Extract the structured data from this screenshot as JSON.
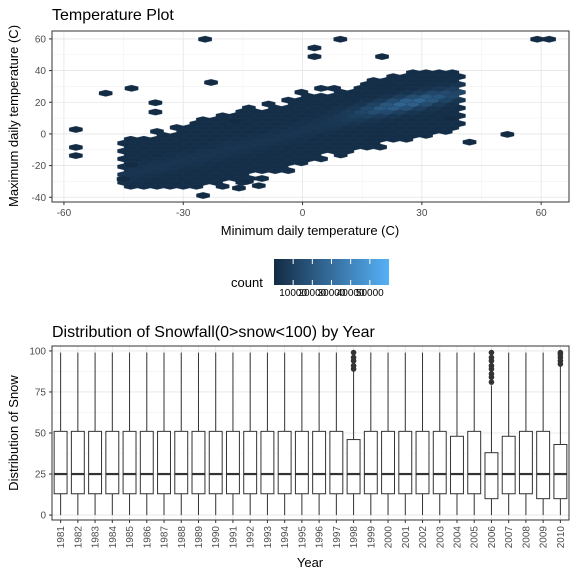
{
  "colors": {
    "panel_border": "#333333",
    "grid_major": "#e5e5e5",
    "grid_minor": "#f2f2f2",
    "hex_low": "#132b43",
    "hex_high": "#56b1f7",
    "hex_edge": "#1e3a5a",
    "box_line": "#333333"
  },
  "chart_data": [
    {
      "type": "hexbin",
      "title": "Temperature Plot",
      "xlabel": "Minimum daily temperature (C)",
      "ylabel": "Maximum daily temperature (C)",
      "xlim": [
        -63,
        67
      ],
      "ylim": [
        -43,
        65
      ],
      "x_ticks": [
        -60,
        -30,
        0,
        30,
        60
      ],
      "y_ticks": [
        -40,
        -20,
        0,
        20,
        40,
        60
      ],
      "x_tick_labels": [
        "-60",
        "-30",
        "0",
        "30",
        "60"
      ],
      "y_tick_labels": [
        "-40",
        "-20",
        "0",
        "20",
        "40",
        "60"
      ],
      "grid": true,
      "bin_width": [
        3.3,
        3.3
      ],
      "dense_region": {
        "description_free": true,
        "x_range": [
          -45,
          40
        ],
        "relationship": {
          "slope": 1.0,
          "intercept": 12
        },
        "half_width": 22,
        "peak": [
          14,
          25
        ]
      },
      "outlier_bins": [
        [
          -24.5,
          59.8
        ],
        [
          9.5,
          59.8
        ],
        [
          59,
          59.8
        ],
        [
          62,
          59.8
        ],
        [
          3,
          54.3
        ],
        [
          3,
          48.8
        ],
        [
          20,
          48.8
        ],
        [
          -49.5,
          25.7
        ],
        [
          -43,
          28.8
        ],
        [
          -37,
          19.7
        ],
        [
          -37,
          13.8
        ],
        [
          -23,
          32.5
        ],
        [
          -17,
          8.1
        ],
        [
          -14,
          -30.0
        ],
        [
          -16,
          -34.2
        ],
        [
          -25,
          -38.9
        ],
        [
          -11,
          -32.7
        ],
        [
          -57,
          2.8
        ],
        [
          -57,
          -8.5
        ],
        [
          -57,
          -13.7
        ],
        [
          37,
          9.5
        ],
        [
          42,
          -5.2
        ],
        [
          51.5,
          -0.3
        ],
        [
          -45,
          -28.5
        ],
        [
          -43,
          -19.5
        ]
      ],
      "legend": {
        "title": "count",
        "placement": "bottom",
        "ticks": [
          10000,
          20000,
          30000,
          40000,
          50000
        ],
        "tick_labels": [
          "10000",
          "20000",
          "30000",
          "40000",
          "50000"
        ],
        "range": [
          0,
          60000
        ]
      }
    },
    {
      "type": "boxplot",
      "title": "Distribution of Snowfall(0>snow<100) by Year",
      "xlabel": "Year",
      "ylabel": "Distribution of Snow",
      "ylim": [
        -3,
        103
      ],
      "y_ticks": [
        0,
        25,
        50,
        75,
        100
      ],
      "y_tick_labels": [
        "0",
        "25",
        "50",
        "75",
        "100"
      ],
      "grid": true,
      "categories": [
        "1981",
        "1982",
        "1983",
        "1984",
        "1985",
        "1986",
        "1987",
        "1988",
        "1989",
        "1990",
        "1991",
        "1992",
        "1993",
        "1994",
        "1995",
        "1996",
        "1997",
        "1998",
        "1999",
        "2000",
        "2001",
        "2002",
        "2003",
        "2004",
        "2005",
        "2006",
        "2007",
        "2008",
        "2009",
        "2010"
      ],
      "boxes": [
        {
          "min": 0,
          "q1": 13,
          "median": 25,
          "q3": 51,
          "max": 99,
          "outliers": []
        },
        {
          "min": 0,
          "q1": 13,
          "median": 25,
          "q3": 51,
          "max": 99,
          "outliers": []
        },
        {
          "min": 0,
          "q1": 13,
          "median": 25,
          "q3": 51,
          "max": 99,
          "outliers": []
        },
        {
          "min": 0,
          "q1": 13,
          "median": 25,
          "q3": 51,
          "max": 99,
          "outliers": []
        },
        {
          "min": 0,
          "q1": 13,
          "median": 25,
          "q3": 51,
          "max": 99,
          "outliers": []
        },
        {
          "min": 0,
          "q1": 13,
          "median": 25,
          "q3": 51,
          "max": 99,
          "outliers": []
        },
        {
          "min": 0,
          "q1": 13,
          "median": 25,
          "q3": 51,
          "max": 99,
          "outliers": []
        },
        {
          "min": 0,
          "q1": 13,
          "median": 25,
          "q3": 51,
          "max": 99,
          "outliers": []
        },
        {
          "min": 0,
          "q1": 13,
          "median": 25,
          "q3": 51,
          "max": 99,
          "outliers": []
        },
        {
          "min": 0,
          "q1": 13,
          "median": 25,
          "q3": 51,
          "max": 99,
          "outliers": []
        },
        {
          "min": 0,
          "q1": 13,
          "median": 25,
          "q3": 51,
          "max": 99,
          "outliers": []
        },
        {
          "min": 0,
          "q1": 13,
          "median": 25,
          "q3": 51,
          "max": 99,
          "outliers": []
        },
        {
          "min": 0,
          "q1": 13,
          "median": 25,
          "q3": 51,
          "max": 99,
          "outliers": []
        },
        {
          "min": 0,
          "q1": 13,
          "median": 25,
          "q3": 51,
          "max": 99,
          "outliers": []
        },
        {
          "min": 0,
          "q1": 13,
          "median": 25,
          "q3": 51,
          "max": 99,
          "outliers": []
        },
        {
          "min": 0,
          "q1": 13,
          "median": 25,
          "q3": 51,
          "max": 99,
          "outliers": []
        },
        {
          "min": 0,
          "q1": 13,
          "median": 25,
          "q3": 51,
          "max": 99,
          "outliers": []
        },
        {
          "min": 0,
          "q1": 13,
          "median": 25,
          "q3": 46,
          "max": 88,
          "outliers": [
            89,
            91,
            94,
            96,
            99
          ]
        },
        {
          "min": 0,
          "q1": 13,
          "median": 25,
          "q3": 51,
          "max": 99,
          "outliers": []
        },
        {
          "min": 0,
          "q1": 13,
          "median": 25,
          "q3": 51,
          "max": 99,
          "outliers": []
        },
        {
          "min": 0,
          "q1": 13,
          "median": 25,
          "q3": 51,
          "max": 99,
          "outliers": []
        },
        {
          "min": 0,
          "q1": 13,
          "median": 25,
          "q3": 51,
          "max": 99,
          "outliers": []
        },
        {
          "min": 0,
          "q1": 13,
          "median": 25,
          "q3": 51,
          "max": 99,
          "outliers": []
        },
        {
          "min": 0,
          "q1": 13,
          "median": 25,
          "q3": 48,
          "max": 99,
          "outliers": []
        },
        {
          "min": 0,
          "q1": 13,
          "median": 25,
          "q3": 51,
          "max": 99,
          "outliers": []
        },
        {
          "min": 0,
          "q1": 10,
          "median": 25,
          "q3": 38,
          "max": 79,
          "outliers": [
            81,
            84,
            86,
            89,
            91,
            94,
            96,
            99
          ]
        },
        {
          "min": 0,
          "q1": 13,
          "median": 25,
          "q3": 48,
          "max": 99,
          "outliers": []
        },
        {
          "min": 0,
          "q1": 13,
          "median": 25,
          "q3": 51,
          "max": 99,
          "outliers": []
        },
        {
          "min": 0,
          "q1": 10,
          "median": 25,
          "q3": 51,
          "max": 99,
          "outliers": []
        },
        {
          "min": 0,
          "q1": 10,
          "median": 25,
          "q3": 43,
          "max": 91,
          "outliers": [
            92,
            94,
            96,
            98,
            99
          ]
        }
      ]
    }
  ]
}
